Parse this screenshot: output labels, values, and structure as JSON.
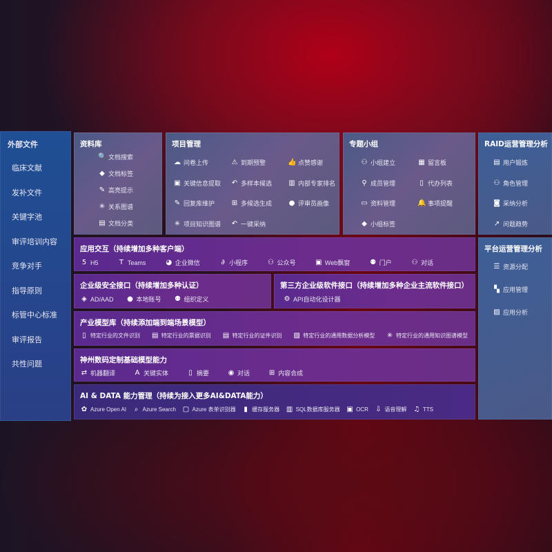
{
  "sidebar": {
    "title": "外部文件",
    "items": [
      "临床文献",
      "发补文件",
      "关键字池",
      "审评培训内容",
      "竞争对手",
      "指导原则",
      "标管中心标准",
      "审评报告",
      "共性问题"
    ]
  },
  "library": {
    "title": "资料库",
    "items": [
      {
        "label": "文档搜索",
        "icon": "file-search-icon"
      },
      {
        "label": "文档标签",
        "icon": "tag-icon"
      },
      {
        "label": "高亮提示",
        "icon": "pen-icon"
      },
      {
        "label": "关系图谱",
        "icon": "graph-icon"
      },
      {
        "label": "文档分类",
        "icon": "file-stack-icon"
      }
    ]
  },
  "project": {
    "title": "项目管理",
    "items": [
      {
        "label": "问卷上传",
        "icon": "cloud-upload-icon"
      },
      {
        "label": "到期预警",
        "icon": "alarm-icon"
      },
      {
        "label": "点赞感谢",
        "icon": "thumbs-up-icon"
      },
      {
        "label": "关键信息提取",
        "icon": "window-icon"
      },
      {
        "label": "多样本候选",
        "icon": "reply-icon"
      },
      {
        "label": "内部专家排名",
        "icon": "podium-icon"
      },
      {
        "label": "回复库维护",
        "icon": "edit-icon"
      },
      {
        "label": "多候选生成",
        "icon": "puzzle-icon"
      },
      {
        "label": "评审员画像",
        "icon": "user-icon"
      },
      {
        "label": "项目知识图谱",
        "icon": "graph-icon"
      },
      {
        "label": "一键采纳",
        "icon": "reply-icon"
      }
    ]
  },
  "group": {
    "title": "专题小组",
    "items": [
      {
        "label": "小组建立",
        "icon": "users-icon"
      },
      {
        "label": "留言板",
        "icon": "bbs-icon"
      },
      {
        "label": "成员管理",
        "icon": "user-add-icon"
      },
      {
        "label": "代办列表",
        "icon": "clipboard-icon"
      },
      {
        "label": "资料管理",
        "icon": "folder-icon"
      },
      {
        "label": "事项提醒",
        "icon": "bell-icon"
      },
      {
        "label": "小组标签",
        "icon": "tag-icon"
      }
    ]
  },
  "raid": {
    "title": "RAID运营管理分析",
    "items": [
      {
        "label": "用户锻炼",
        "icon": "id-card-icon"
      },
      {
        "label": "角色管理",
        "icon": "users-icon"
      },
      {
        "label": "采纳分析",
        "icon": "qa-icon"
      },
      {
        "label": "问题趋势",
        "icon": "trend-icon"
      }
    ]
  },
  "platform": {
    "title": "平台运营管理分析",
    "items": [
      {
        "label": "资源分配",
        "icon": "checklist-icon"
      },
      {
        "label": "应用管理",
        "icon": "apps-icon"
      },
      {
        "label": "应用分析",
        "icon": "chart-icon"
      }
    ]
  },
  "interaction": {
    "title": "应用交互（持续增加多种客户端）",
    "items": [
      {
        "label": "H5",
        "icon": "html5-icon"
      },
      {
        "label": "Teams",
        "icon": "teams-icon"
      },
      {
        "label": "企业微信",
        "icon": "wechat-icon"
      },
      {
        "label": "小程序",
        "icon": "miniprogram-icon"
      },
      {
        "label": "公众号",
        "icon": "users-icon"
      },
      {
        "label": "Web飘窗",
        "icon": "window-icon"
      },
      {
        "label": "门户",
        "icon": "portal-icon"
      },
      {
        "label": "对话",
        "icon": "chat-users-icon"
      }
    ]
  },
  "security": {
    "title": "企业级安全接口（持续增加多种认证）",
    "items": [
      {
        "label": "AD/AAD",
        "icon": "ad-icon"
      },
      {
        "label": "本地账号",
        "icon": "user-icon"
      },
      {
        "label": "组织定义",
        "icon": "org-icon"
      }
    ]
  },
  "thirdparty": {
    "title": "第三方企业级软件接口（持续增加多种企业主流软件接口）",
    "items": [
      {
        "label": "API自动化设计器",
        "icon": "gear-icon"
      }
    ]
  },
  "industry": {
    "title": "产业模型库（持续添加端到端场景模型）",
    "items": [
      {
        "label": "特定行业的文件识别",
        "icon": "file-icon"
      },
      {
        "label": "特定行业的票据识别",
        "icon": "receipt-icon"
      },
      {
        "label": "特定行业的证件识别",
        "icon": "id-card-icon"
      },
      {
        "label": "特定行业的通用数据分析模型",
        "icon": "image-icon"
      },
      {
        "label": "特定行业的通用知识图谱模型",
        "icon": "graph-icon"
      }
    ]
  },
  "base": {
    "title": "神州数码定制基础模型能力",
    "items": [
      {
        "label": "机器翻译",
        "icon": "translate-icon"
      },
      {
        "label": "关键实体",
        "icon": "entity-icon"
      },
      {
        "label": "摘要",
        "icon": "doc-icon"
      },
      {
        "label": "对话",
        "icon": "chat-icon"
      },
      {
        "label": "内容合成",
        "icon": "puzzle-icon"
      }
    ]
  },
  "ai": {
    "title": "AI & DATA 能力管理（持续为接入更多AI&DATA能力）",
    "items": [
      {
        "label": "Azure Open AI",
        "icon": "openai-icon"
      },
      {
        "label": "Azure Search",
        "icon": "search-icon"
      },
      {
        "label": "Azure 表单识别器",
        "icon": "form-icon"
      },
      {
        "label": "缓存服务器",
        "icon": "server-icon"
      },
      {
        "label": "SQL数据库服务器",
        "icon": "database-icon"
      },
      {
        "label": "OCR",
        "icon": "ocr-icon"
      },
      {
        "label": "语音理解",
        "icon": "speech-icon"
      },
      {
        "label": "TTS",
        "icon": "tts-icon"
      }
    ]
  }
}
